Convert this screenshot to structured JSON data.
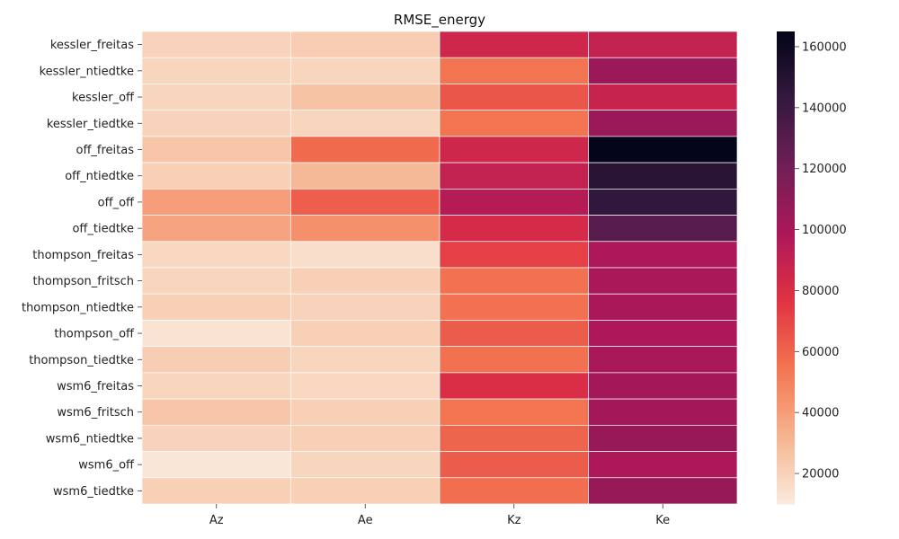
{
  "chart_data": {
    "type": "heatmap",
    "title": "RMSE_energy",
    "xlabel": "",
    "ylabel": "",
    "columns": [
      "Az",
      "Ae",
      "Kz",
      "Ke"
    ],
    "rows": [
      "kessler_freitas",
      "kessler_ntiedtke",
      "kessler_off",
      "kessler_tiedtke",
      "off_freitas",
      "off_ntiedtke",
      "off_off",
      "off_tiedtke",
      "thompson_freitas",
      "thompson_fritsch",
      "thompson_ntiedtke",
      "thompson_off",
      "thompson_tiedtke",
      "wsm6_freitas",
      "wsm6_fritsch",
      "wsm6_ntiedtke",
      "wsm6_off",
      "wsm6_tiedtke"
    ],
    "values": [
      [
        20000,
        22000,
        85000,
        90000
      ],
      [
        19000,
        19000,
        55000,
        105000
      ],
      [
        19000,
        26000,
        65000,
        88000
      ],
      [
        20000,
        19000,
        55000,
        105000
      ],
      [
        25000,
        58000,
        85000,
        165000
      ],
      [
        21000,
        30000,
        90000,
        148000
      ],
      [
        40000,
        62000,
        95000,
        145000
      ],
      [
        38000,
        45000,
        82000,
        130000
      ],
      [
        18000,
        15000,
        72000,
        98000
      ],
      [
        19000,
        21000,
        56000,
        100000
      ],
      [
        21000,
        20000,
        56000,
        100000
      ],
      [
        13000,
        21000,
        63000,
        98000
      ],
      [
        22000,
        19000,
        56000,
        100000
      ],
      [
        19000,
        18000,
        80000,
        102000
      ],
      [
        25000,
        21000,
        55000,
        102000
      ],
      [
        20000,
        21000,
        60000,
        107000
      ],
      [
        12000,
        19000,
        63000,
        98000
      ],
      [
        21000,
        21000,
        57000,
        107000
      ]
    ],
    "colorbar": {
      "min": 10000,
      "max": 165000,
      "ticks": [
        20000,
        40000,
        60000,
        80000,
        100000,
        120000,
        140000,
        160000
      ],
      "colormap": "rocket_r",
      "stops": [
        "#faebdd",
        "#f6b48f",
        "#f37651",
        "#e13342",
        "#ad1759",
        "#701f57",
        "#35193e",
        "#03051a"
      ]
    },
    "grid": true,
    "legend": "colorbar-right"
  }
}
